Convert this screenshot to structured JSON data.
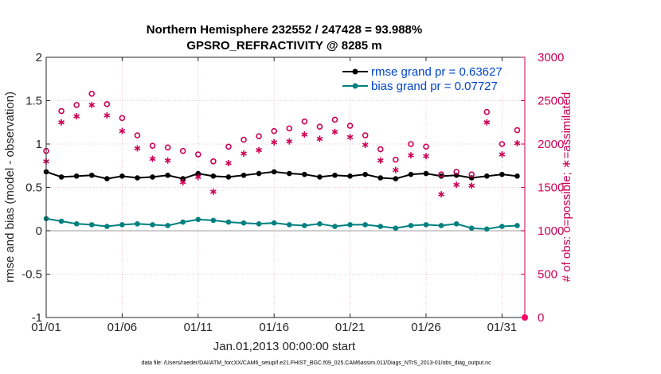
{
  "chart_data": {
    "type": "line",
    "title": "Northern Hemisphere 232552 / 247428 = 93.988%",
    "subtitle": "GPSRO_REFRACTIVITY @ 8285 m",
    "xlabel": "Jan.01,2013 00:00:00 start",
    "ylabel": "rmse and bias (model - observation)",
    "y2label": "# of obs: o=possible; ∗=assimilated",
    "footnote": "data file: /Users/raeder/DAI/ATM_forcXX/CAM6_setup/f.e21.FHIST_BGC.f09_025.CAM6assim.011/Diags_NTrS_2013-01/obs_diag_output.nc",
    "xlim": [
      0,
      31.5
    ],
    "ylim": [
      -1,
      2
    ],
    "y2lim": [
      0,
      3000
    ],
    "xticks": [
      0,
      5,
      10,
      15,
      20,
      25,
      30
    ],
    "xtick_labels": [
      "01/01",
      "01/06",
      "01/11",
      "01/16",
      "01/21",
      "01/26",
      "01/31"
    ],
    "yticks": [
      -1,
      -0.5,
      0,
      0.5,
      1,
      1.5,
      2
    ],
    "ytick_labels": [
      "-1",
      "-0.5",
      "0",
      "0.5",
      "1",
      "1.5",
      "2"
    ],
    "y2ticks": [
      0,
      500,
      1000,
      1500,
      2000,
      2500,
      3000
    ],
    "y2tick_labels": [
      "0",
      "500",
      "1000",
      "1500",
      "2000",
      "2500",
      "3000"
    ],
    "legend_position": "top-right",
    "series": [
      {
        "name": "rmse grand pr = 0.63627",
        "axis": "left",
        "marker": "filled-circle",
        "color": "#000000",
        "x": [
          0,
          1,
          2,
          3,
          4,
          5,
          6,
          7,
          8,
          9,
          10,
          11,
          12,
          13,
          14,
          15,
          16,
          17,
          18,
          19,
          20,
          21,
          22,
          23,
          24,
          25,
          26,
          27,
          28,
          29,
          30,
          31
        ],
        "values": [
          0.68,
          0.62,
          0.63,
          0.64,
          0.6,
          0.63,
          0.61,
          0.62,
          0.64,
          0.6,
          0.66,
          0.63,
          0.62,
          0.64,
          0.66,
          0.68,
          0.66,
          0.65,
          0.62,
          0.64,
          0.63,
          0.65,
          0.61,
          0.6,
          0.65,
          0.66,
          0.63,
          0.64,
          0.61,
          0.63,
          0.65,
          0.63
        ]
      },
      {
        "name": "bias grand pr = 0.07727",
        "axis": "left",
        "marker": "filled-circle",
        "color": "#008080",
        "x": [
          0,
          1,
          2,
          3,
          4,
          5,
          6,
          7,
          8,
          9,
          10,
          11,
          12,
          13,
          14,
          15,
          16,
          17,
          18,
          19,
          20,
          21,
          22,
          23,
          24,
          25,
          26,
          27,
          28,
          29,
          30,
          31
        ],
        "values": [
          0.14,
          0.11,
          0.08,
          0.07,
          0.05,
          0.07,
          0.08,
          0.07,
          0.06,
          0.1,
          0.13,
          0.12,
          0.1,
          0.09,
          0.08,
          0.09,
          0.07,
          0.06,
          0.08,
          0.05,
          0.07,
          0.07,
          0.05,
          0.03,
          0.06,
          0.07,
          0.06,
          0.08,
          0.03,
          0.02,
          0.05,
          0.06
        ]
      },
      {
        "name": "possible obs",
        "axis": "right",
        "marker": "open-circle",
        "color": "#cc0055",
        "x": [
          0,
          1,
          2,
          3,
          4,
          5,
          6,
          7,
          8,
          9,
          10,
          11,
          12,
          13,
          14,
          15,
          16,
          17,
          18,
          19,
          20,
          21,
          22,
          23,
          24,
          25,
          26,
          27,
          28,
          29,
          30,
          31
        ],
        "values": [
          1920,
          2380,
          2450,
          2580,
          2460,
          2300,
          2100,
          1980,
          1960,
          1920,
          1880,
          1800,
          1970,
          2050,
          2090,
          2150,
          2180,
          2260,
          2200,
          2280,
          2210,
          2100,
          1940,
          1820,
          2000,
          1970,
          1650,
          1680,
          1650,
          2370,
          2000,
          2160
        ]
      },
      {
        "name": "assimilated obs",
        "axis": "right",
        "marker": "asterisk",
        "color": "#cc0055",
        "x": [
          0,
          1,
          2,
          3,
          4,
          5,
          6,
          7,
          8,
          9,
          10,
          11,
          12,
          13,
          14,
          15,
          16,
          17,
          18,
          19,
          20,
          21,
          22,
          23,
          24,
          25,
          26,
          27,
          28,
          29,
          30,
          31
        ],
        "values": [
          1800,
          2250,
          2320,
          2450,
          2330,
          2150,
          1950,
          1830,
          1810,
          1560,
          1620,
          1450,
          1780,
          1890,
          1930,
          2020,
          2030,
          2110,
          2060,
          2140,
          2080,
          1990,
          1810,
          1700,
          1870,
          1860,
          1420,
          1530,
          1520,
          2250,
          1880,
          2010
        ]
      }
    ]
  }
}
